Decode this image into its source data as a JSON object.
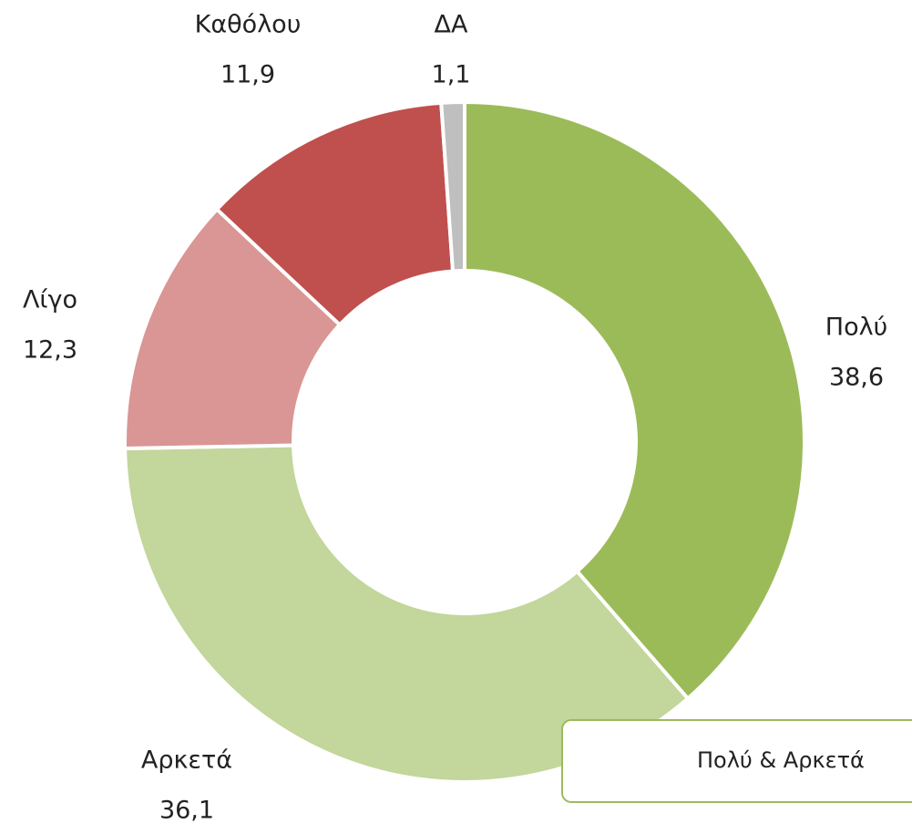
{
  "chart_data": {
    "type": "pie",
    "categories": [
      "Πολύ",
      "Αρκετά",
      "Λίγο",
      "Καθόλου",
      "ΔΑ"
    ],
    "values": [
      38.6,
      36.1,
      12.3,
      11.9,
      1.1
    ],
    "value_labels": [
      "38,6",
      "36,1",
      "12,3",
      "11,9",
      "1,1"
    ],
    "colors": [
      "#9bbb59",
      "#c3d69b",
      "#d99694",
      "#c0504d",
      "#bfbfbf"
    ],
    "annotation": "Πολύ & Αρκετά"
  }
}
